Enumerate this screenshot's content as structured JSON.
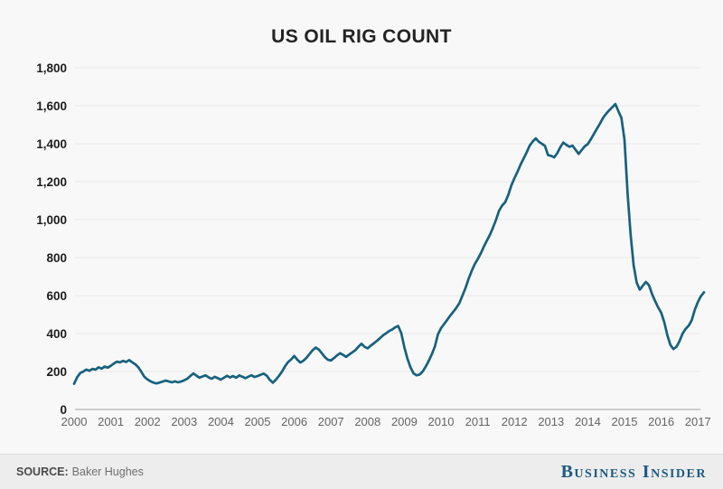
{
  "footer": {
    "source_label": "SOURCE:",
    "source_value": "Baker Hughes",
    "brand": "Business Insider"
  },
  "chart_data": {
    "type": "line",
    "title": "US OIL RIG COUNT",
    "xlabel": "",
    "ylabel": "",
    "grid": true,
    "legend_position": "none",
    "ylim": [
      0,
      1800
    ],
    "xlim": [
      2000,
      2017.2
    ],
    "theme": {
      "line_color": "#17617d",
      "grid_color": "#e8e8e8",
      "baseline_color": "#bdbdbd",
      "background": "#f8f8f8"
    },
    "y_axis": {
      "ticks": [
        {
          "label": "0",
          "value": 0
        },
        {
          "label": "200",
          "value": 200
        },
        {
          "label": "400",
          "value": 400
        },
        {
          "label": "600",
          "value": 600
        },
        {
          "label": "800",
          "value": 800
        },
        {
          "label": "1,000",
          "value": 1000
        },
        {
          "label": "1,200",
          "value": 1200
        },
        {
          "label": "1,400",
          "value": 1400
        },
        {
          "label": "1,600",
          "value": 1600
        },
        {
          "label": "1,800",
          "value": 1800
        }
      ]
    },
    "x_axis": {
      "ticks": [
        {
          "label": "2000",
          "value": 2000
        },
        {
          "label": "2001",
          "value": 2001
        },
        {
          "label": "2002",
          "value": 2002
        },
        {
          "label": "2003",
          "value": 2003
        },
        {
          "label": "2004",
          "value": 2004
        },
        {
          "label": "2005",
          "value": 2005
        },
        {
          "label": "2006",
          "value": 2006
        },
        {
          "label": "2007",
          "value": 2007
        },
        {
          "label": "2008",
          "value": 2008
        },
        {
          "label": "2009",
          "value": 2009
        },
        {
          "label": "2010",
          "value": 2010
        },
        {
          "label": "2011",
          "value": 2011
        },
        {
          "label": "2012",
          "value": 2012
        },
        {
          "label": "2013",
          "value": 2013
        },
        {
          "label": "2014",
          "value": 2014
        },
        {
          "label": "2015",
          "value": 2015
        },
        {
          "label": "2016",
          "value": 2016
        },
        {
          "label": "2017",
          "value": 2017
        }
      ]
    },
    "series": [
      {
        "name": "US oil rig count",
        "unit": "rigs",
        "start_year": 2000,
        "interval": "monthly",
        "values": [
          135,
          170,
          192,
          200,
          210,
          204,
          214,
          210,
          222,
          215,
          226,
          220,
          230,
          242,
          252,
          248,
          256,
          250,
          260,
          248,
          238,
          222,
          198,
          172,
          158,
          148,
          141,
          137,
          142,
          147,
          152,
          147,
          143,
          148,
          143,
          147,
          154,
          162,
          176,
          190,
          178,
          167,
          174,
          180,
          169,
          162,
          172,
          165,
          157,
          167,
          177,
          169,
          176,
          167,
          179,
          173,
          165,
          173,
          180,
          171,
          176,
          183,
          189,
          178,
          156,
          141,
          157,
          177,
          200,
          228,
          250,
          264,
          282,
          262,
          247,
          257,
          272,
          292,
          312,
          326,
          316,
          296,
          276,
          262,
          258,
          271,
          285,
          296,
          287,
          277,
          290,
          301,
          313,
          331,
          346,
          330,
          322,
          336,
          348,
          361,
          375,
          390,
          401,
          413,
          421,
          433,
          440,
          402,
          328,
          268,
          222,
          190,
          180,
          184,
          200,
          226,
          256,
          292,
          332,
          396,
          428,
          450,
          472,
          495,
          514,
          535,
          560,
          600,
          640,
          688,
          728,
          765,
          792,
          822,
          858,
          890,
          920,
          958,
          1000,
          1048,
          1075,
          1092,
          1130,
          1180,
          1218,
          1252,
          1290,
          1322,
          1354,
          1390,
          1412,
          1428,
          1410,
          1400,
          1388,
          1340,
          1336,
          1328,
          1350,
          1382,
          1406,
          1394,
          1384,
          1390,
          1368,
          1346,
          1366,
          1386,
          1398,
          1424,
          1452,
          1480,
          1506,
          1536,
          1558,
          1576,
          1592,
          1609,
          1572,
          1536,
          1421,
          1140,
          920,
          760,
          668,
          631,
          652,
          672,
          655,
          608,
          572,
          538,
          510,
          460,
          392,
          340,
          318,
          330,
          360,
          400,
          425,
          442,
          470,
          525,
          566,
          597,
          617
        ]
      }
    ]
  }
}
